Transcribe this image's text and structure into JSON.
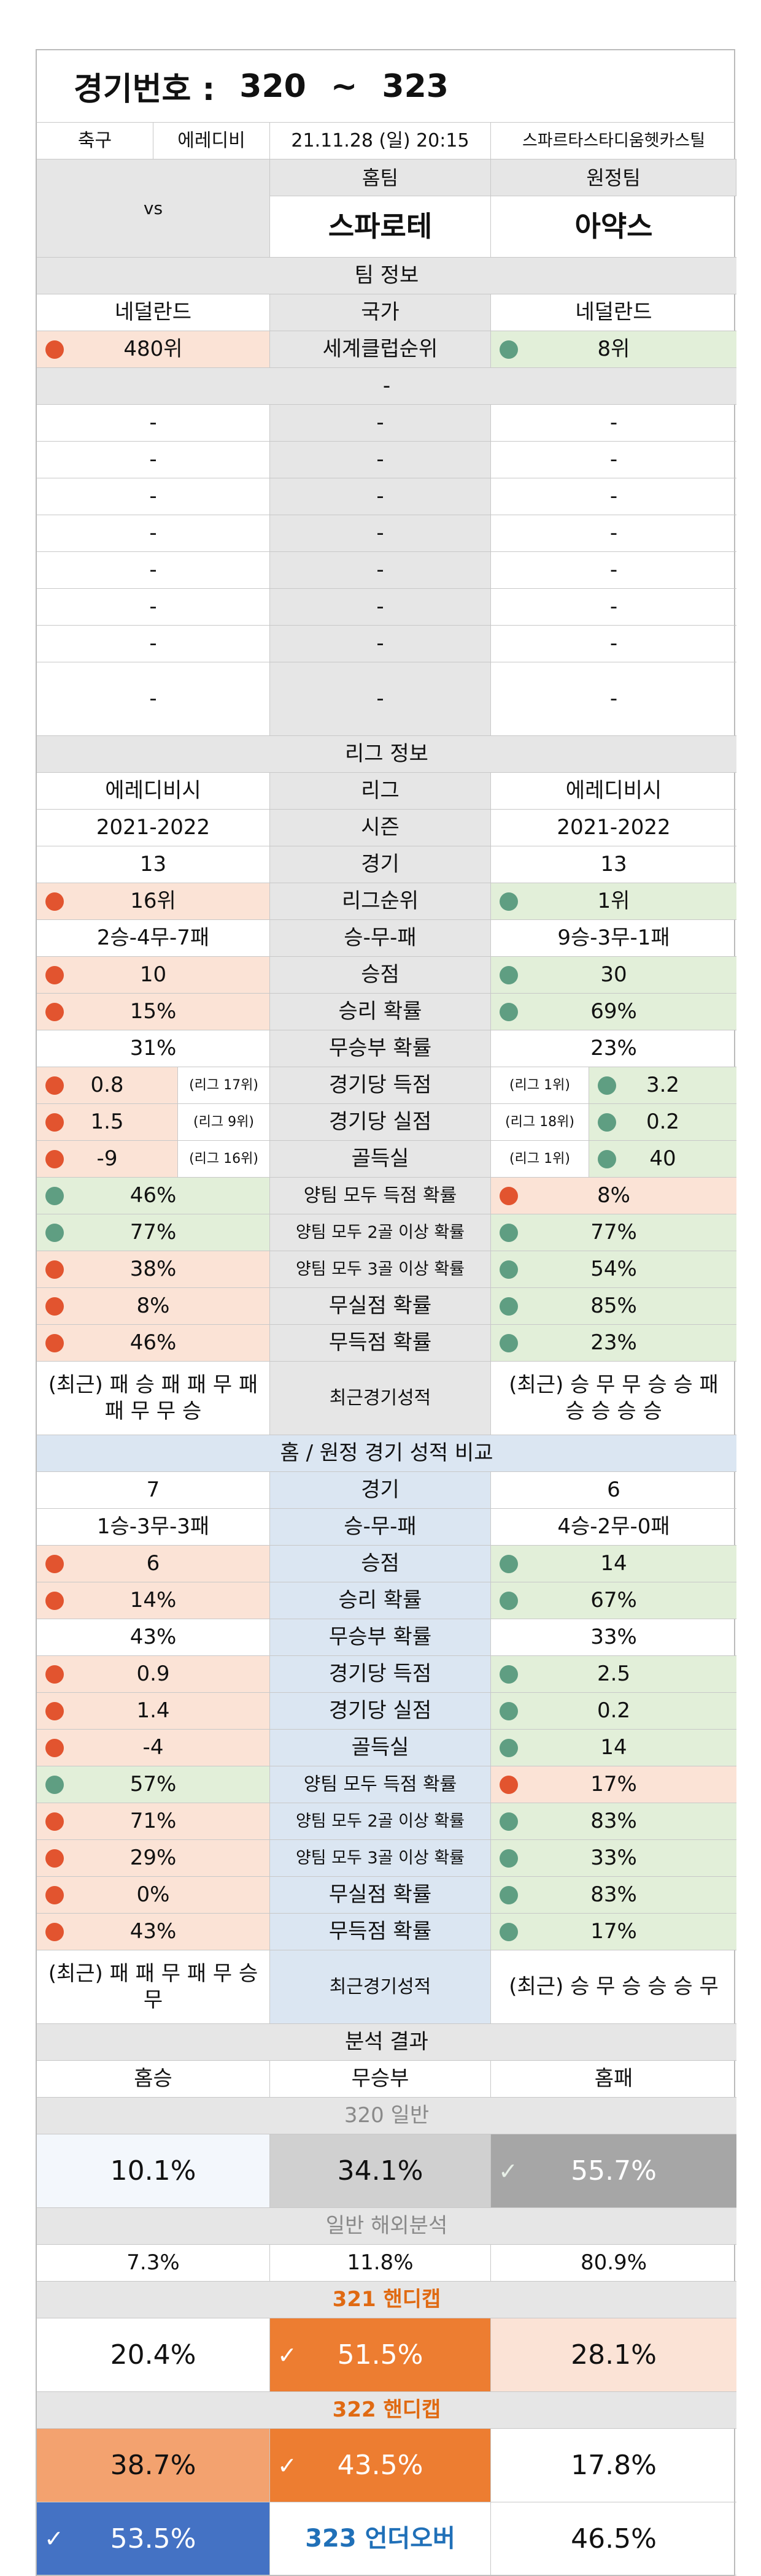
{
  "header": {
    "label": "경기번호 :",
    "from": "320",
    "sep": "~",
    "to": "323"
  },
  "match": {
    "sport": "축구",
    "league": "에레디비",
    "datetime": "21.11.28 (일) 20:15",
    "venue": "스파르타스타디움헷카스틸"
  },
  "teams": {
    "home_label": "홈팀",
    "away_label": "원정팀",
    "home": "스파로테",
    "vs": "vs",
    "away": "아약스"
  },
  "team_info": {
    "title": "팀 정보",
    "country": [
      "네덜란드",
      "국가",
      "네덜란드"
    ],
    "club_rank": [
      "480위",
      "세계클럽순위",
      "8위"
    ],
    "dash_single": "-",
    "dash_rows": [
      [
        "-",
        "-",
        "-"
      ],
      [
        "-",
        "-",
        "-"
      ],
      [
        "-",
        "-",
        "-"
      ],
      [
        "-",
        "-",
        "-"
      ],
      [
        "-",
        "-",
        "-"
      ],
      [
        "-",
        "-",
        "-"
      ],
      [
        "-",
        "-",
        "-"
      ],
      [
        "-",
        "-",
        "-"
      ]
    ]
  },
  "league_info": {
    "title": "리그 정보",
    "league": [
      "에레디비시",
      "리그",
      "에레디비시"
    ],
    "season": [
      "2021-2022",
      "시즌",
      "2021-2022"
    ],
    "games": [
      "13",
      "경기",
      "13"
    ],
    "rank": [
      "16위",
      "리그순위",
      "1위"
    ],
    "record": [
      "2승-4무-7패",
      "승-무-패",
      "9승-3무-1패"
    ],
    "points": [
      "10",
      "승점",
      "30"
    ],
    "win_prob": [
      "15%",
      "승리 확률",
      "69%"
    ],
    "draw_prob": [
      "31%",
      "무승부 확률",
      "23%"
    ],
    "goals_for": [
      "0.8",
      "(리그 17위)",
      "경기당 득점",
      "(리그 1위)",
      "3.2"
    ],
    "goals_against": [
      "1.5",
      "(리그 9위)",
      "경기당 실점",
      "(리그 18위)",
      "0.2"
    ],
    "goal_diff": [
      "-9",
      "(리그 16위)",
      "골득실",
      "(리그 1위)",
      "40"
    ],
    "btts": [
      "46%",
      "양팀 모두 득점 확률",
      "8%"
    ],
    "both2": [
      "77%",
      "양팀 모두 2골 이상 확률",
      "77%"
    ],
    "both3": [
      "38%",
      "양팀 모두 3골 이상 확률",
      "54%"
    ],
    "clean_sheet": [
      "8%",
      "무실점 확률",
      "85%"
    ],
    "no_score": [
      "46%",
      "무득점 확률",
      "23%"
    ],
    "recent": [
      "(최근) 패 승 패 패 무 패 패 무 무 승",
      "최근경기성적",
      "(최근) 승 무 무 승 승 패 승 승 승 승"
    ]
  },
  "home_away": {
    "title": "홈 / 원정 경기 성적 비교",
    "games": [
      "7",
      "경기",
      "6"
    ],
    "record": [
      "1승-3무-3패",
      "승-무-패",
      "4승-2무-0패"
    ],
    "points": [
      "6",
      "승점",
      "14"
    ],
    "win_prob": [
      "14%",
      "승리 확률",
      "67%"
    ],
    "draw_prob": [
      "43%",
      "무승부 확률",
      "33%"
    ],
    "goals_for": [
      "0.9",
      "경기당 득점",
      "2.5"
    ],
    "goals_against": [
      "1.4",
      "경기당 실점",
      "0.2"
    ],
    "goal_diff": [
      "-4",
      "골득실",
      "14"
    ],
    "btts": [
      "57%",
      "양팀 모두 득점 확률",
      "17%"
    ],
    "both2": [
      "71%",
      "양팀 모두 2골 이상 확률",
      "83%"
    ],
    "both3": [
      "29%",
      "양팀 모두 3골 이상 확률",
      "33%"
    ],
    "clean_sheet": [
      "0%",
      "무실점 확률",
      "83%"
    ],
    "no_score": [
      "43%",
      "무득점 확률",
      "17%"
    ],
    "recent": [
      "(최근) 패 패 무 패 무 승 무",
      "최근경기성적",
      "(최근) 승 무 승 승 승 무"
    ]
  },
  "analysis": {
    "title": "분석 결과",
    "cols": [
      "홈승",
      "무승부",
      "홈패"
    ],
    "g320_label": "320 일반",
    "g320": [
      "10.1%",
      "34.1%",
      "55.7%"
    ],
    "overseas_label": "일반 해외분석",
    "overseas": [
      "7.3%",
      "11.8%",
      "80.9%"
    ],
    "g321_label": "321 핸디캡",
    "g321": [
      "20.4%",
      "51.5%",
      "28.1%"
    ],
    "g322_label": "322 핸디캡",
    "g322": [
      "38.7%",
      "43.5%",
      "17.8%"
    ],
    "g323_label": "323 언더오버",
    "g323": [
      "53.5%",
      "46.5%"
    ],
    "check": "✓"
  },
  "colors": {
    "red_dot": "#e2542f",
    "teal_dot": "#5f9e82",
    "orange": "#ed7d31",
    "royal_blue": "#4472c4",
    "pink": "#fbe3d6",
    "green": "#e2efd9",
    "blue": "#dbe6f2"
  }
}
